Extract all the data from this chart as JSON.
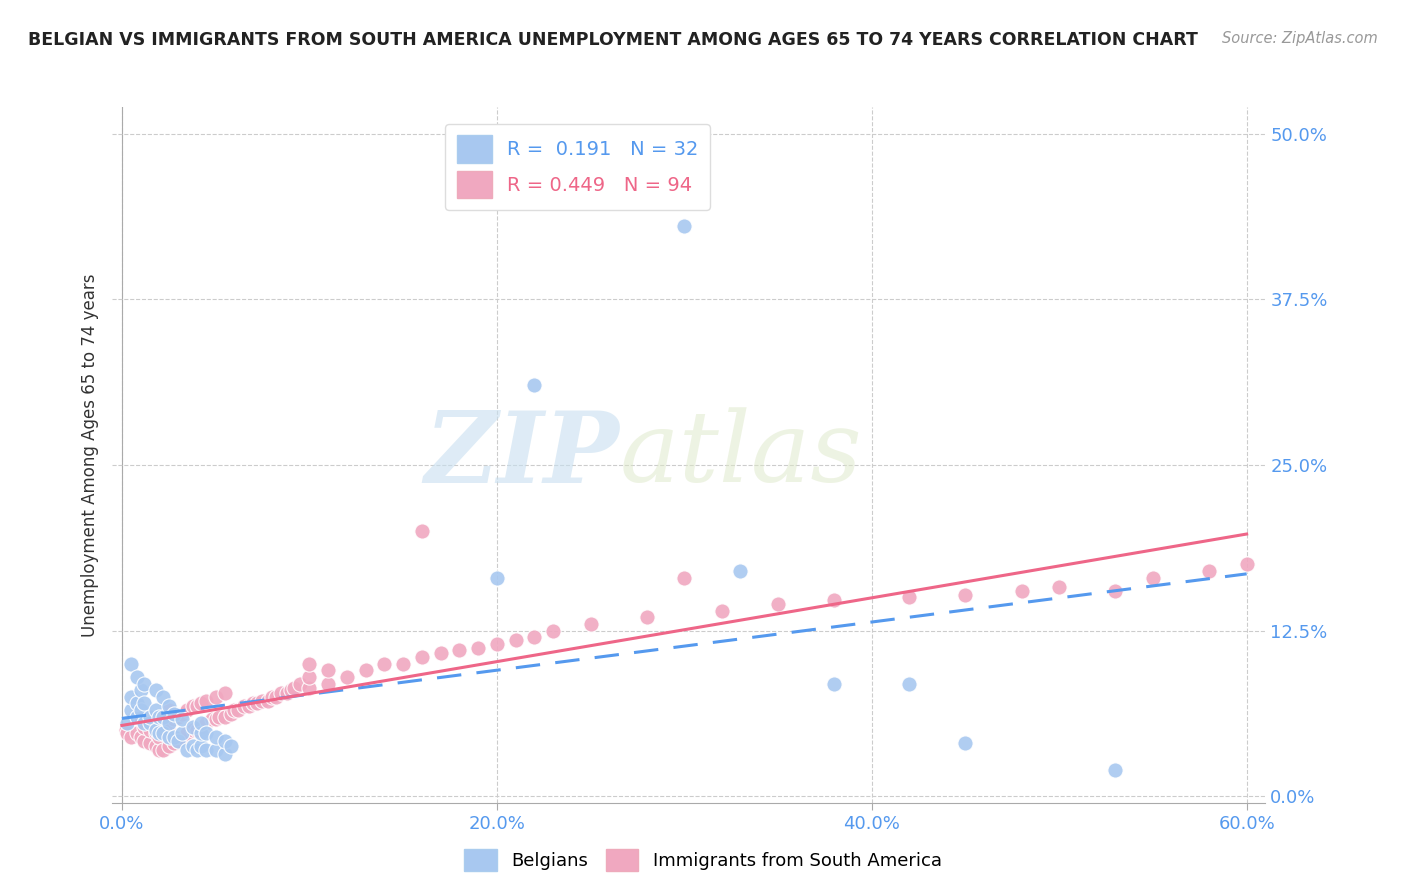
{
  "title": "BELGIAN VS IMMIGRANTS FROM SOUTH AMERICA UNEMPLOYMENT AMONG AGES 65 TO 74 YEARS CORRELATION CHART",
  "source": "Source: ZipAtlas.com",
  "xlabel_ticks": [
    "0.0%",
    "20.0%",
    "40.0%",
    "60.0%"
  ],
  "xlabel_tick_vals": [
    0.0,
    0.2,
    0.4,
    0.6
  ],
  "ylabel": "Unemployment Among Ages 65 to 74 years",
  "ylabel_ticks": [
    "0.0%",
    "12.5%",
    "25.0%",
    "37.5%",
    "50.0%"
  ],
  "ylabel_tick_vals": [
    0.0,
    0.125,
    0.25,
    0.375,
    0.5
  ],
  "xlim": [
    -0.005,
    0.61
  ],
  "ylim": [
    -0.005,
    0.52
  ],
  "belgian_R": "0.191",
  "belgian_N": "32",
  "immigrants_R": "0.449",
  "immigrants_N": "94",
  "belgian_color": "#a8c8f0",
  "immigrant_color": "#f0a8c0",
  "belgian_line_color": "#5599ee",
  "immigrant_line_color": "#ee6688",
  "legend_label_belgian": "Belgians",
  "legend_label_immigrant": "Immigrants from South America",
  "watermark_zip": "ZIP",
  "watermark_atlas": "atlas",
  "belgian_scatter_x": [
    0.003,
    0.005,
    0.005,
    0.008,
    0.008,
    0.01,
    0.01,
    0.012,
    0.012,
    0.015,
    0.015,
    0.018,
    0.018,
    0.02,
    0.02,
    0.022,
    0.022,
    0.025,
    0.025,
    0.028,
    0.03,
    0.032,
    0.035,
    0.038,
    0.04,
    0.042,
    0.045,
    0.05,
    0.055,
    0.2,
    0.22,
    0.38
  ],
  "belgian_scatter_y": [
    0.055,
    0.065,
    0.075,
    0.06,
    0.07,
    0.065,
    0.08,
    0.055,
    0.07,
    0.055,
    0.06,
    0.05,
    0.065,
    0.048,
    0.06,
    0.048,
    0.06,
    0.045,
    0.055,
    0.045,
    0.042,
    0.048,
    0.035,
    0.038,
    0.035,
    0.038,
    0.035,
    0.035,
    0.032,
    0.165,
    0.31,
    0.085
  ],
  "belgian_scatter_x2": [
    0.005,
    0.008,
    0.012,
    0.018,
    0.022,
    0.025,
    0.028,
    0.032,
    0.038,
    0.042,
    0.042,
    0.045,
    0.05,
    0.055,
    0.058,
    0.3,
    0.33,
    0.42,
    0.45,
    0.53
  ],
  "belgian_scatter_y2": [
    0.1,
    0.09,
    0.085,
    0.08,
    0.075,
    0.068,
    0.062,
    0.058,
    0.052,
    0.048,
    0.055,
    0.048,
    0.045,
    0.042,
    0.038,
    0.43,
    0.17,
    0.085,
    0.04,
    0.02
  ],
  "immigrant_scatter_x": [
    0.002,
    0.003,
    0.005,
    0.008,
    0.008,
    0.01,
    0.01,
    0.012,
    0.012,
    0.015,
    0.015,
    0.015,
    0.018,
    0.018,
    0.018,
    0.02,
    0.02,
    0.02,
    0.022,
    0.022,
    0.022,
    0.025,
    0.025,
    0.025,
    0.028,
    0.028,
    0.03,
    0.03,
    0.032,
    0.032,
    0.035,
    0.035,
    0.038,
    0.038,
    0.04,
    0.04,
    0.042,
    0.042,
    0.045,
    0.045,
    0.048,
    0.05,
    0.05,
    0.052,
    0.055,
    0.055,
    0.058,
    0.06,
    0.062,
    0.065,
    0.068,
    0.07,
    0.072,
    0.075,
    0.078,
    0.08,
    0.082,
    0.085,
    0.088,
    0.09,
    0.092,
    0.095,
    0.1,
    0.1,
    0.1,
    0.11,
    0.11,
    0.12,
    0.13,
    0.14,
    0.15,
    0.16,
    0.17,
    0.18,
    0.19,
    0.2,
    0.21,
    0.22,
    0.23,
    0.25,
    0.28,
    0.3,
    0.32,
    0.35,
    0.38,
    0.42,
    0.45,
    0.48,
    0.5,
    0.53,
    0.55,
    0.58,
    0.6,
    0.16
  ],
  "immigrant_scatter_y": [
    0.05,
    0.048,
    0.045,
    0.048,
    0.06,
    0.045,
    0.058,
    0.042,
    0.052,
    0.04,
    0.05,
    0.06,
    0.038,
    0.048,
    0.058,
    0.035,
    0.045,
    0.055,
    0.035,
    0.048,
    0.06,
    0.038,
    0.05,
    0.065,
    0.04,
    0.058,
    0.042,
    0.06,
    0.045,
    0.062,
    0.048,
    0.065,
    0.05,
    0.068,
    0.05,
    0.068,
    0.052,
    0.07,
    0.055,
    0.072,
    0.058,
    0.058,
    0.075,
    0.06,
    0.06,
    0.078,
    0.062,
    0.065,
    0.065,
    0.068,
    0.068,
    0.07,
    0.07,
    0.072,
    0.072,
    0.075,
    0.075,
    0.078,
    0.078,
    0.08,
    0.082,
    0.085,
    0.082,
    0.09,
    0.1,
    0.085,
    0.095,
    0.09,
    0.095,
    0.1,
    0.1,
    0.105,
    0.108,
    0.11,
    0.112,
    0.115,
    0.118,
    0.12,
    0.125,
    0.13,
    0.135,
    0.165,
    0.14,
    0.145,
    0.148,
    0.15,
    0.152,
    0.155,
    0.158,
    0.155,
    0.165,
    0.17,
    0.175,
    0.2
  ]
}
